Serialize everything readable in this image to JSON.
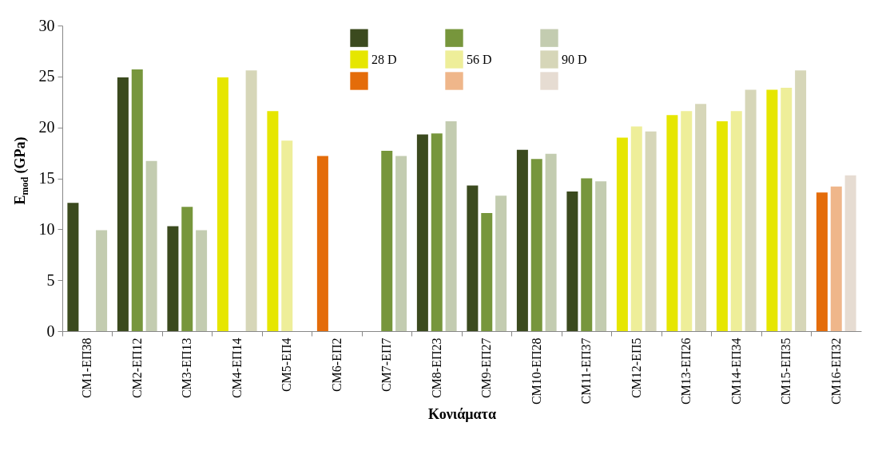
{
  "chart_data": {
    "type": "bar",
    "xlabel": "Κονιάματα",
    "ylabel": "E$_{mod}$ (GPa)",
    "categories": [
      "CM1-ΕΠ38",
      "CM2-ΕΠ12",
      "CM3-ΕΠ13",
      "CM4-ΕΠ14",
      "CM5-ΕΠ4",
      "CM6-ΕΠ2",
      "CM7-ΕΠ7",
      "CM8-ΕΠ23",
      "CM9-ΕΠ27",
      "CM10-ΕΠ28",
      "CM11-ΕΠ37",
      "CM12-ΕΠ5",
      "CM13-ΕΠ26",
      "CM14-ΕΠ34",
      "CM15-ΕΠ35",
      "CM16-ΕΠ32"
    ],
    "series": [
      {
        "color": "#3b4a1e",
        "values": [
          12.6,
          24.9,
          10.3,
          null,
          null,
          null,
          null,
          19.3,
          14.3,
          17.8,
          13.7,
          null,
          null,
          null,
          null,
          null
        ]
      },
      {
        "color": "#77963c",
        "values": [
          null,
          25.7,
          12.2,
          null,
          null,
          null,
          17.7,
          19.4,
          11.6,
          16.9,
          15.0,
          null,
          null,
          null,
          null,
          null
        ]
      },
      {
        "color": "#c3ccb0",
        "values": [
          9.9,
          16.7,
          9.9,
          null,
          null,
          null,
          17.2,
          20.6,
          13.3,
          17.4,
          14.7,
          null,
          null,
          null,
          null,
          null
        ]
      },
      {
        "name": "28 D",
        "color": "#e6e600",
        "values": [
          null,
          null,
          null,
          24.9,
          21.6,
          null,
          null,
          null,
          null,
          null,
          null,
          19.0,
          21.2,
          20.6,
          23.7,
          null
        ]
      },
      {
        "name": "56 D",
        "color": "#eeee99",
        "values": [
          null,
          null,
          null,
          null,
          18.7,
          null,
          null,
          null,
          null,
          null,
          null,
          20.1,
          21.6,
          21.6,
          23.9,
          null
        ]
      },
      {
        "name": "90 D",
        "color": "#d6d6b8",
        "values": [
          null,
          null,
          null,
          25.6,
          null,
          null,
          null,
          null,
          null,
          null,
          null,
          19.6,
          22.3,
          23.7,
          25.6,
          null
        ]
      },
      {
        "color": "#e46c0a",
        "values": [
          null,
          null,
          null,
          null,
          null,
          17.2,
          null,
          null,
          null,
          null,
          null,
          null,
          null,
          null,
          null,
          13.6
        ]
      },
      {
        "color": "#efb68a",
        "values": [
          null,
          null,
          null,
          null,
          null,
          null,
          null,
          null,
          null,
          null,
          null,
          null,
          null,
          null,
          null,
          14.2
        ]
      },
      {
        "color": "#e6dcd2",
        "values": [
          null,
          null,
          null,
          null,
          null,
          null,
          null,
          null,
          null,
          null,
          null,
          null,
          null,
          null,
          null,
          15.3
        ]
      }
    ],
    "ylim": [
      0,
      30
    ],
    "yticks": [
      0,
      5,
      10,
      15,
      20,
      25,
      30
    ],
    "grid": false,
    "legend": "top"
  }
}
